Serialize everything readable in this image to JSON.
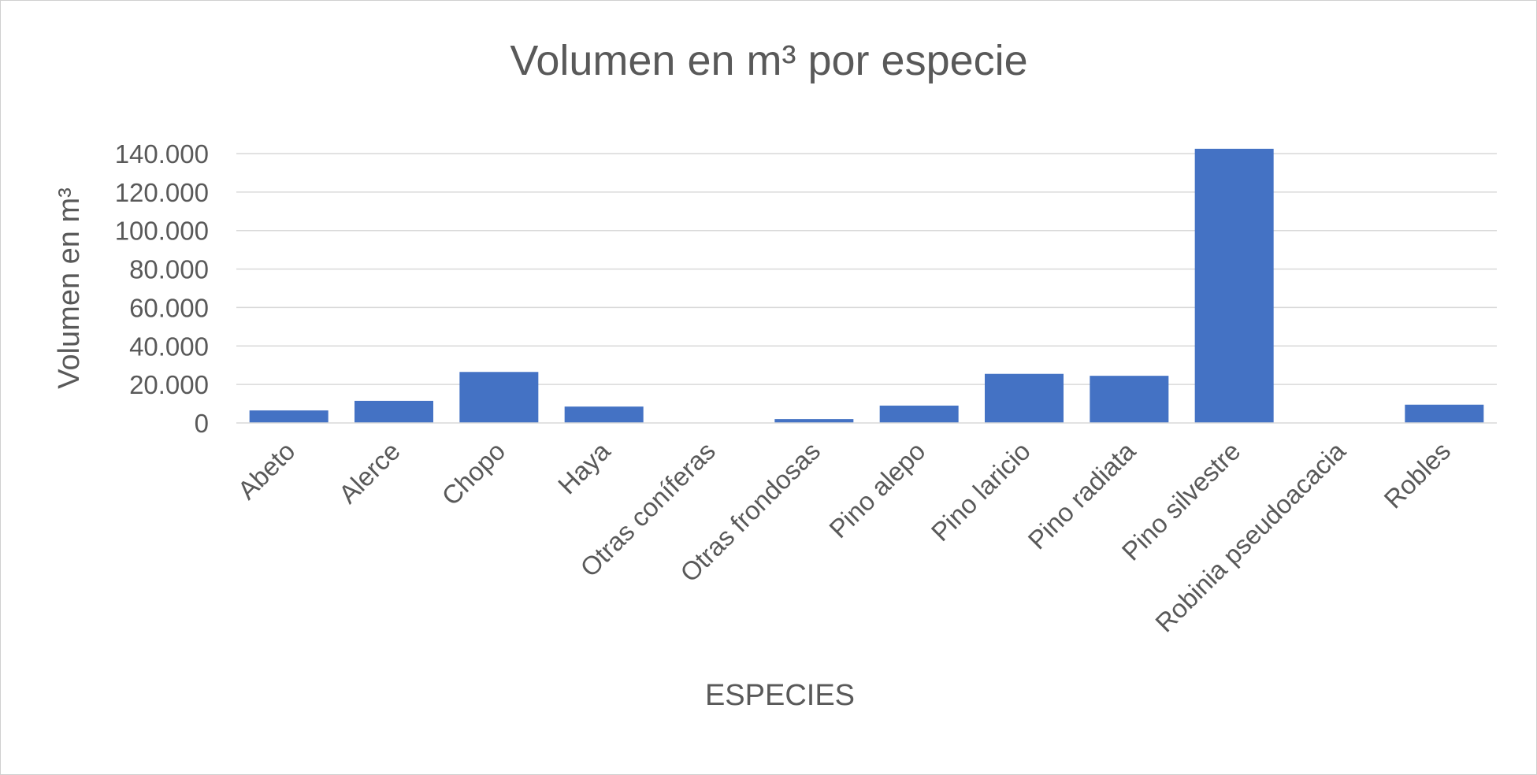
{
  "chart_data": {
    "type": "bar",
    "title": "Volumen en m³ por especie",
    "xlabel": "ESPECIES",
    "ylabel": "Volumen en m³",
    "categories": [
      "Abeto",
      "Alerce",
      "Chopo",
      "Haya",
      "Otras coníferas",
      "Otras frondosas",
      "Pino alepo",
      "Pino laricio",
      "Pino radiata",
      "Pino silvestre",
      "Robinia pseudoacacia",
      "Robles"
    ],
    "series": [
      {
        "values": [
          6500,
          11500,
          26500,
          8500,
          0,
          2000,
          9000,
          25500,
          24500,
          142500,
          0,
          9500
        ]
      }
    ],
    "ylim": [
      0,
      140000
    ],
    "yticks": [
      0,
      20000,
      40000,
      60000,
      80000,
      100000,
      120000,
      140000
    ],
    "ytick_labels": [
      "0",
      "20.000",
      "40.000",
      "60.000",
      "80.000",
      "100.000",
      "120.000",
      "140.000"
    ],
    "grid": true,
    "legend": "none",
    "bar_color": "#4472C4"
  }
}
